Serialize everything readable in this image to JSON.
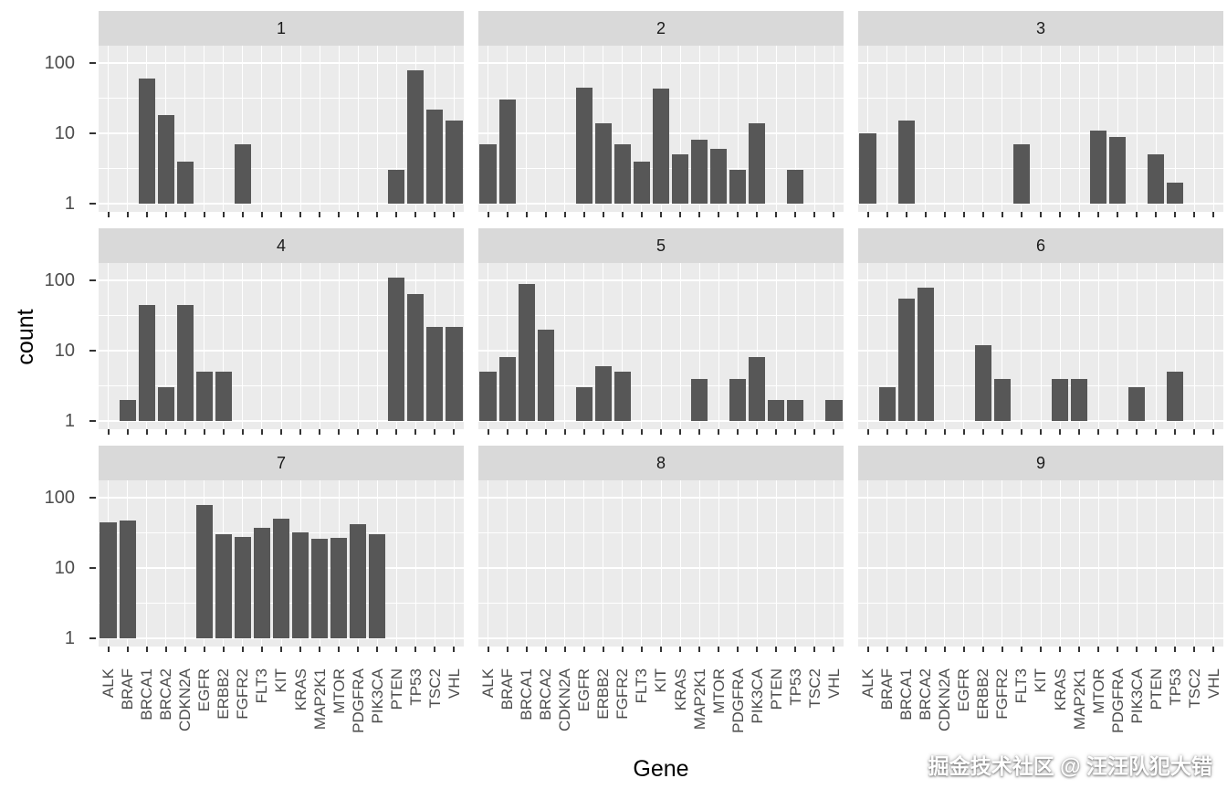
{
  "watermark": "掘金技术社区 @ 汪汪队犯大错",
  "chart_data": {
    "type": "bar",
    "title": "",
    "xlabel": "Gene",
    "ylabel": "count",
    "y_scale": "log10",
    "y_ticks": [
      1,
      10,
      100
    ],
    "ylim_log10": [
      -0.12,
      2.25
    ],
    "grid": true,
    "legend": "none",
    "bar_color": "#575757",
    "panel_color": "#ebebeb",
    "strip_color": "#d9d9d9",
    "categories": [
      "ALK",
      "BRAF",
      "BRCA1",
      "BRCA2",
      "CDKN2A",
      "EGFR",
      "ERBB2",
      "FGFR2",
      "FLT3",
      "KIT",
      "KRAS",
      "MAP2K1",
      "MTOR",
      "PDGFRA",
      "PIK3CA",
      "PTEN",
      "TP53",
      "TSC2",
      "VHL"
    ],
    "facets": [
      {
        "label": "1",
        "values": [
          0,
          0,
          60,
          18,
          4,
          0,
          0,
          7,
          0,
          0,
          0,
          0,
          0,
          0,
          0,
          3,
          80,
          22,
          15
        ]
      },
      {
        "label": "2",
        "values": [
          7,
          30,
          0,
          0,
          0,
          45,
          14,
          7,
          4,
          43,
          5,
          8,
          6,
          3,
          14,
          0,
          3,
          0,
          0
        ]
      },
      {
        "label": "3",
        "values": [
          10,
          0,
          15,
          0,
          0,
          0,
          0,
          0,
          7,
          0,
          0,
          0,
          11,
          9,
          0,
          5,
          2,
          0,
          0
        ]
      },
      {
        "label": "4",
        "values": [
          0,
          2,
          45,
          3,
          45,
          5,
          5,
          0,
          0,
          0,
          0,
          0,
          0,
          0,
          0,
          110,
          65,
          22,
          22
        ]
      },
      {
        "label": "5",
        "values": [
          5,
          8,
          90,
          20,
          0,
          3,
          6,
          5,
          0,
          0,
          0,
          4,
          0,
          4,
          8,
          2,
          2,
          0,
          2
        ]
      },
      {
        "label": "6",
        "values": [
          0,
          3,
          55,
          80,
          0,
          0,
          12,
          4,
          0,
          0,
          4,
          4,
          0,
          0,
          3,
          0,
          5,
          0,
          0
        ]
      },
      {
        "label": "7",
        "values": [
          45,
          48,
          0,
          0,
          0,
          80,
          30,
          28,
          37,
          50,
          32,
          26,
          27,
          42,
          30,
          0,
          0,
          0,
          0
        ]
      },
      {
        "label": "8",
        "values": [
          0,
          0,
          0,
          0,
          0,
          0,
          0,
          0,
          0,
          0,
          0,
          0,
          0,
          0,
          0,
          0,
          0,
          0,
          0
        ]
      },
      {
        "label": "9",
        "values": [
          0,
          0,
          0,
          0,
          0,
          0,
          0,
          0,
          0,
          0,
          0,
          0,
          0,
          0,
          0,
          0,
          0,
          0,
          0
        ]
      }
    ]
  }
}
